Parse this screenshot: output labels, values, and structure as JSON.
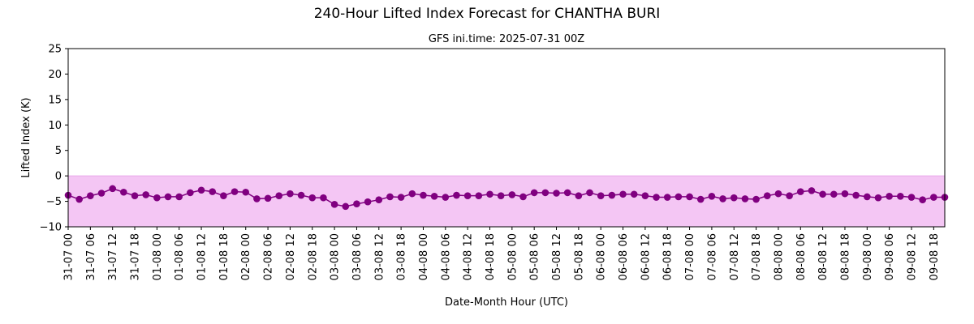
{
  "chart_data": {
    "type": "line",
    "title": "240-Hour Lifted Index Forecast for CHANTHA BURI",
    "subtitle": "GFS ini.time: 2025-07-31 00Z",
    "xlabel": "Date-Month Hour (UTC)",
    "ylabel": "Lifted Index (K)",
    "ylim": [
      -10,
      25
    ],
    "yticks": [
      "25",
      "20",
      "15",
      "10",
      "5",
      "0",
      "−5",
      "−10"
    ],
    "ytick_values": [
      25,
      20,
      15,
      10,
      5,
      0,
      -5,
      -10
    ],
    "x_tick_labels": [
      "31-07 00",
      "31-07 06",
      "31-07 12",
      "31-07 18",
      "01-08 00",
      "01-08 06",
      "01-08 12",
      "01-08 18",
      "02-08 00",
      "02-08 06",
      "02-08 12",
      "02-08 18",
      "03-08 00",
      "03-08 06",
      "03-08 12",
      "03-08 18",
      "04-08 00",
      "04-08 06",
      "04-08 12",
      "04-08 18",
      "05-08 00",
      "05-08 06",
      "05-08 12",
      "05-08 18",
      "06-08 00",
      "06-08 06",
      "06-08 12",
      "06-08 18",
      "07-08 00",
      "07-08 06",
      "07-08 12",
      "07-08 18",
      "08-08 00",
      "08-08 06",
      "08-08 12",
      "08-08 18",
      "09-08 00",
      "09-08 06",
      "09-08 12",
      "09-08 18"
    ],
    "time_step_hours": 3,
    "series": [
      {
        "color": "#800080",
        "fill_color": "#f4c6f4",
        "values": [
          -3.8,
          -4.6,
          -3.9,
          -3.4,
          -2.5,
          -3.2,
          -3.9,
          -3.7,
          -4.3,
          -4.1,
          -4.1,
          -3.3,
          -2.8,
          -3.1,
          -3.9,
          -3.1,
          -3.2,
          -4.5,
          -4.4,
          -3.9,
          -3.5,
          -3.8,
          -4.3,
          -4.3,
          -5.6,
          -6.0,
          -5.5,
          -5.1,
          -4.7,
          -4.1,
          -4.2,
          -3.5,
          -3.8,
          -4.0,
          -4.2,
          -3.8,
          -3.9,
          -3.9,
          -3.6,
          -3.9,
          -3.7,
          -4.1,
          -3.3,
          -3.3,
          -3.4,
          -3.3,
          -3.9,
          -3.3,
          -3.9,
          -3.8,
          -3.6,
          -3.6,
          -3.9,
          -4.2,
          -4.2,
          -4.1,
          -4.1,
          -4.6,
          -4.0,
          -4.5,
          -4.3,
          -4.5,
          -4.6,
          -3.9,
          -3.5,
          -3.9,
          -3.1,
          -2.9,
          -3.6,
          -3.6,
          -3.5,
          -3.8,
          -4.1,
          -4.3,
          -4.0,
          -4.0,
          -4.2,
          -4.7,
          -4.2,
          -4.2
        ]
      }
    ],
    "grid": false,
    "legend": "none"
  }
}
